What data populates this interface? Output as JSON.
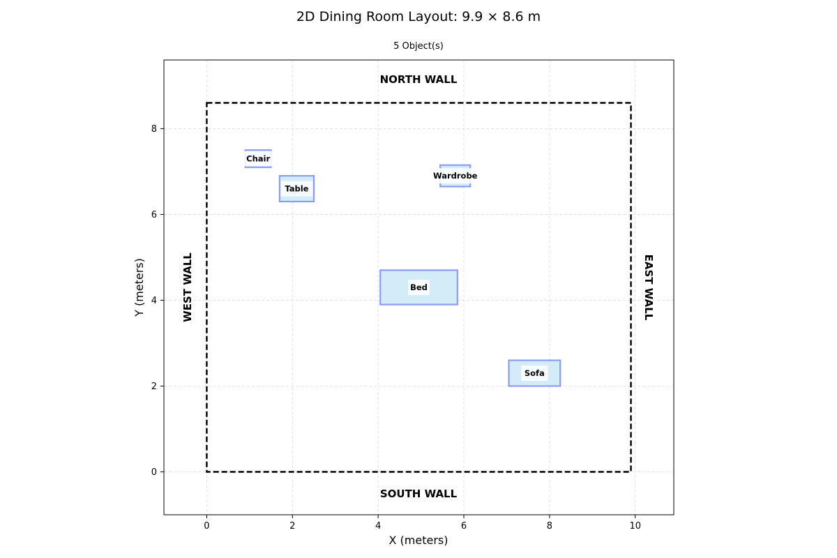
{
  "chart_data": {
    "type": "floor-plan",
    "title": "2D Dining Room Layout: 9.9 × 8.6 m",
    "subtitle": "5 Object(s)",
    "xlabel": "X (meters)",
    "ylabel": "Y (meters)",
    "xlim": [
      -1.0,
      10.9
    ],
    "ylim": [
      -1.0,
      9.6
    ],
    "x_ticks": [
      0,
      2,
      4,
      6,
      8,
      10
    ],
    "y_ticks": [
      0,
      2,
      4,
      6,
      8
    ],
    "grid": true,
    "room": {
      "width": 9.9,
      "depth": 8.6
    },
    "walls": {
      "north": "NORTH WALL",
      "south": "SOUTH WALL",
      "west": "WEST WALL",
      "east": "EAST WALL"
    },
    "objects": [
      {
        "name": "Chair",
        "x": 0.9,
        "y": 7.1,
        "width": 0.6,
        "depth": 0.4
      },
      {
        "name": "Table",
        "x": 1.7,
        "y": 6.3,
        "width": 0.8,
        "depth": 0.6
      },
      {
        "name": "Wardrobe",
        "x": 5.45,
        "y": 6.65,
        "width": 0.7,
        "depth": 0.5
      },
      {
        "name": "Bed",
        "x": 4.05,
        "y": 3.9,
        "width": 1.8,
        "depth": 0.8
      },
      {
        "name": "Sofa",
        "x": 7.05,
        "y": 2.0,
        "width": 1.2,
        "depth": 0.6
      }
    ],
    "colors": {
      "object_fill": "#d3ecf8",
      "object_edge": "#8c9cf2",
      "room_edge": "#000000",
      "grid": "#dddddd"
    }
  }
}
